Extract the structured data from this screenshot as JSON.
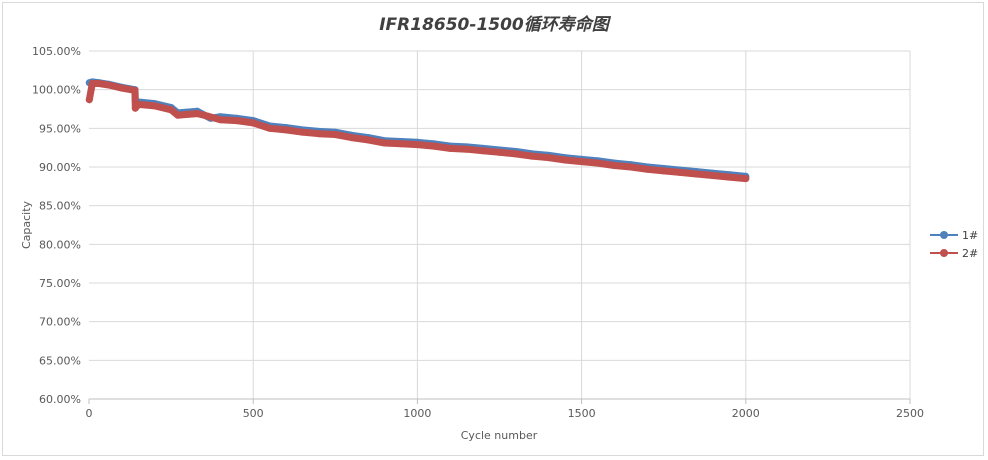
{
  "chart_data": {
    "type": "line",
    "title": "IFR18650-1500循环寿命图",
    "xlabel": "Cycle number",
    "ylabel": "Capacity",
    "xlim": [
      0,
      2500
    ],
    "ylim": [
      60,
      105
    ],
    "x_ticks": [
      "0",
      "500",
      "1000",
      "1500",
      "2000",
      "2500"
    ],
    "y_ticks": [
      "60.00%",
      "65.00%",
      "70.00%",
      "75.00%",
      "80.00%",
      "85.00%",
      "90.00%",
      "95.00%",
      "100.00%",
      "105.00%"
    ],
    "grid": true,
    "legend_position": "right",
    "series": [
      {
        "name": "1#",
        "color": "#4f81bd",
        "x": [
          1,
          10,
          30,
          60,
          100,
          140,
          141,
          150,
          200,
          250,
          270,
          300,
          330,
          370,
          400,
          450,
          500,
          550,
          600,
          650,
          700,
          750,
          800,
          850,
          900,
          950,
          1000,
          1050,
          1100,
          1150,
          1200,
          1250,
          1300,
          1350,
          1400,
          1450,
          1500,
          1550,
          1600,
          1650,
          1700,
          1750,
          1800,
          1850,
          1900,
          1950,
          2000
        ],
        "values": [
          100.9,
          101.0,
          100.9,
          100.7,
          100.3,
          100.0,
          98.5,
          98.4,
          98.2,
          97.7,
          97.0,
          97.1,
          97.2,
          96.3,
          96.5,
          96.3,
          96.0,
          95.3,
          95.1,
          94.8,
          94.6,
          94.5,
          94.1,
          93.8,
          93.4,
          93.3,
          93.2,
          93.0,
          92.7,
          92.6,
          92.4,
          92.2,
          92.0,
          91.7,
          91.5,
          91.2,
          91.0,
          90.8,
          90.5,
          90.3,
          90.0,
          89.8,
          89.6,
          89.4,
          89.2,
          89.0,
          88.8
        ]
      },
      {
        "name": "2#",
        "color": "#c0504d",
        "x": [
          1,
          10,
          30,
          60,
          100,
          140,
          141,
          150,
          200,
          250,
          270,
          300,
          330,
          360,
          400,
          450,
          500,
          550,
          600,
          650,
          700,
          750,
          800,
          850,
          900,
          950,
          1000,
          1050,
          1100,
          1150,
          1200,
          1250,
          1300,
          1350,
          1400,
          1450,
          1500,
          1550,
          1600,
          1650,
          1700,
          1750,
          1800,
          1850,
          1900,
          1950,
          2000
        ],
        "values": [
          98.7,
          100.8,
          100.8,
          100.6,
          100.2,
          99.9,
          97.6,
          98.1,
          97.9,
          97.4,
          96.7,
          96.8,
          96.9,
          96.6,
          96.1,
          96.0,
          95.7,
          95.0,
          94.8,
          94.5,
          94.3,
          94.2,
          93.8,
          93.5,
          93.1,
          93.0,
          92.9,
          92.7,
          92.4,
          92.3,
          92.1,
          91.9,
          91.7,
          91.4,
          91.2,
          90.9,
          90.7,
          90.5,
          90.2,
          90.0,
          89.7,
          89.5,
          89.3,
          89.1,
          88.9,
          88.7,
          88.5
        ]
      }
    ]
  }
}
